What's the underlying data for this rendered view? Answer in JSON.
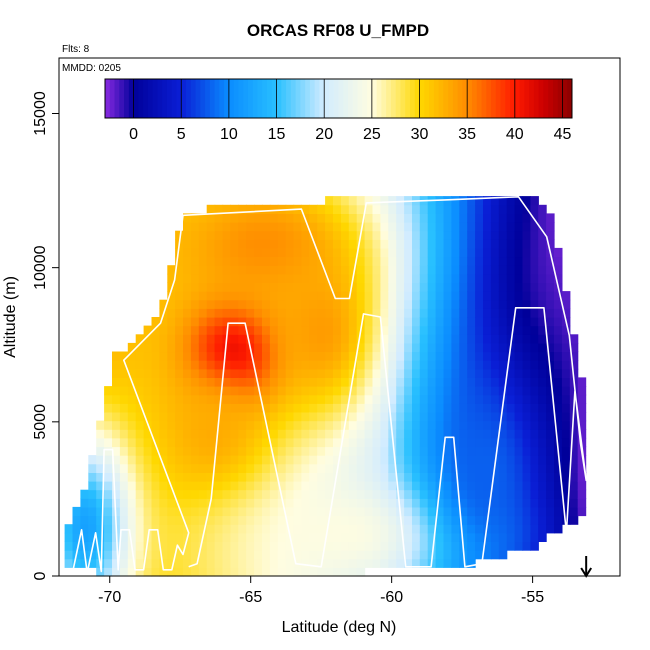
{
  "chart_data": {
    "type": "heatmap",
    "title": "ORCAS RF08 U_FMPD",
    "xlabel": "Latitude (deg N)",
    "ylabel": "Altitude (m)",
    "flights_note": "Flts: 8",
    "date_note": "MMDD: 0205",
    "xlim": [
      -71.8,
      -51.9
    ],
    "ylim": [
      0,
      16800
    ],
    "x_ticks": [
      -70,
      -65,
      -60,
      -55
    ],
    "x_tick_labels": [
      "-70",
      "-65",
      "-60",
      "-55"
    ],
    "y_ticks": [
      0,
      5000,
      10000,
      15000
    ],
    "y_tick_labels": [
      "0",
      "5000",
      "10000",
      "15000"
    ],
    "colorbar": {
      "range": [
        -3,
        46
      ],
      "ticks": [
        0,
        5,
        10,
        15,
        20,
        25,
        30,
        35,
        40,
        45
      ],
      "tick_labels": [
        "0",
        "5",
        "10",
        "15",
        "20",
        "25",
        "30",
        "35",
        "40",
        "45"
      ],
      "stops": [
        {
          "v": -3,
          "c": "#8a2be2"
        },
        {
          "v": 0,
          "c": "#00009a"
        },
        {
          "v": 5,
          "c": "#0a1fd6"
        },
        {
          "v": 10,
          "c": "#0a8cff"
        },
        {
          "v": 15,
          "c": "#28c0ff"
        },
        {
          "v": 20,
          "c": "#d2ecff"
        },
        {
          "v": 25,
          "c": "#fffde0"
        },
        {
          "v": 30,
          "c": "#ffd800"
        },
        {
          "v": 35,
          "c": "#ff8c00"
        },
        {
          "v": 40,
          "c": "#ff1a00"
        },
        {
          "v": 43,
          "c": "#cc0000"
        },
        {
          "v": 46,
          "c": "#8b0000"
        }
      ]
    },
    "cell_size": {
      "lat": 0.28,
      "alt": 280
    },
    "data_region": [
      {
        "lat": -71.6,
        "alt_top": 1500
      },
      {
        "lat": -71.0,
        "alt_top": 2600
      },
      {
        "lat": -70.5,
        "alt_top": 4800
      },
      {
        "lat": -69.9,
        "alt_top": 7100
      },
      {
        "lat": -69.0,
        "alt_top": 7700
      },
      {
        "lat": -68.4,
        "alt_top": 8300
      },
      {
        "lat": -68.0,
        "alt_top": 9800
      },
      {
        "lat": -67.6,
        "alt_top": 11400
      },
      {
        "lat": -67.0,
        "alt_top": 11700
      },
      {
        "lat": -66.0,
        "alt_top": 12000
      },
      {
        "lat": -63.0,
        "alt_top": 12000
      },
      {
        "lat": -61.0,
        "alt_top": 12200
      },
      {
        "lat": -58.0,
        "alt_top": 12300
      },
      {
        "lat": -55.6,
        "alt_top": 12300
      },
      {
        "lat": -54.6,
        "alt_top": 11900
      },
      {
        "lat": -54.1,
        "alt_top": 9800
      },
      {
        "lat": -53.7,
        "alt_top": 7700
      },
      {
        "lat": -53.4,
        "alt_top": 6400
      },
      {
        "lat": -53.3,
        "alt_top": 4200
      },
      {
        "lat": -53.3,
        "alt_top": 3000
      }
    ],
    "data_bottom": [
      {
        "lat": -71.6,
        "alt": 300
      },
      {
        "lat": -66.0,
        "alt": 200
      },
      {
        "lat": -63.0,
        "alt": 200
      },
      {
        "lat": -59.5,
        "alt": 350
      },
      {
        "lat": -57.5,
        "alt": 500
      },
      {
        "lat": -55.0,
        "alt": 1100
      },
      {
        "lat": -53.3,
        "alt": 2200
      }
    ],
    "field_features": [
      {
        "lat": -65.6,
        "alt": 7100,
        "value": 46,
        "lat_sd": 1.3,
        "alt_sd": 1300
      },
      {
        "lat": -64.6,
        "alt": 10600,
        "value": 35,
        "lat_sd": 2.6,
        "alt_sd": 1700
      },
      {
        "lat": -66.5,
        "alt": 4400,
        "value": 33,
        "lat_sd": 1.6,
        "alt_sd": 1700
      },
      {
        "lat": -62.6,
        "alt": 7800,
        "value": 34,
        "lat_sd": 1.6,
        "alt_sd": 2200
      },
      {
        "lat": -61.0,
        "alt": 1300,
        "value": 25,
        "lat_sd": 3.5,
        "alt_sd": 1200
      },
      {
        "lat": -54.5,
        "alt": 7000,
        "value": -2,
        "lat_sd": 1.6,
        "alt_sd": 4000
      },
      {
        "lat": -56.8,
        "alt": 3200,
        "value": 8,
        "lat_sd": 1.7,
        "alt_sd": 3000
      },
      {
        "lat": -71.0,
        "alt": 1400,
        "value": 12,
        "lat_sd": 1.2,
        "alt_sd": 2300
      }
    ],
    "flight_track": [
      [
        -71.3,
        200
      ],
      [
        -71.0,
        1500
      ],
      [
        -70.8,
        100
      ],
      [
        -70.5,
        1400
      ],
      [
        -70.3,
        150
      ],
      [
        -70.2,
        4100
      ],
      [
        -69.9,
        4100
      ],
      [
        -69.7,
        200
      ],
      [
        -69.6,
        1500
      ],
      [
        -69.3,
        1500
      ],
      [
        -69.1,
        200
      ],
      [
        -68.8,
        200
      ],
      [
        -68.6,
        1500
      ],
      [
        -68.3,
        1500
      ],
      [
        -68.1,
        200
      ],
      [
        -67.8,
        200
      ],
      [
        -67.6,
        1000
      ],
      [
        -67.4,
        700
      ],
      [
        -67.2,
        1400
      ],
      [
        -69.5,
        7000
      ],
      [
        -68.2,
        8200
      ],
      [
        -67.7,
        9600
      ],
      [
        -67.4,
        11700
      ],
      [
        -63.2,
        11900
      ],
      [
        -62.0,
        9000
      ],
      [
        -61.5,
        9000
      ],
      [
        -60.9,
        12100
      ],
      [
        -58.0,
        12200
      ],
      [
        -55.5,
        12300
      ],
      [
        -54.5,
        11000
      ],
      [
        -53.7,
        7800
      ],
      [
        -53.3,
        4300
      ],
      [
        -53.1,
        3100
      ],
      [
        -53.5,
        6000
      ],
      [
        -53.8,
        1400
      ],
      [
        -54.6,
        8700
      ],
      [
        -55.6,
        8700
      ],
      [
        -56.8,
        400
      ],
      [
        -57.4,
        300
      ],
      [
        -57.8,
        4500
      ],
      [
        -58.1,
        4500
      ],
      [
        -58.6,
        300
      ],
      [
        -59.5,
        300
      ],
      [
        -60.4,
        8400
      ],
      [
        -61.0,
        8500
      ],
      [
        -62.5,
        300
      ],
      [
        -63.4,
        400
      ],
      [
        -65.2,
        8200
      ],
      [
        -65.8,
        8200
      ],
      [
        -66.4,
        2500
      ],
      [
        -66.9,
        400
      ],
      [
        -67.2,
        300
      ]
    ],
    "marker": {
      "lat": -53.1,
      "label": "down-arrow"
    }
  }
}
